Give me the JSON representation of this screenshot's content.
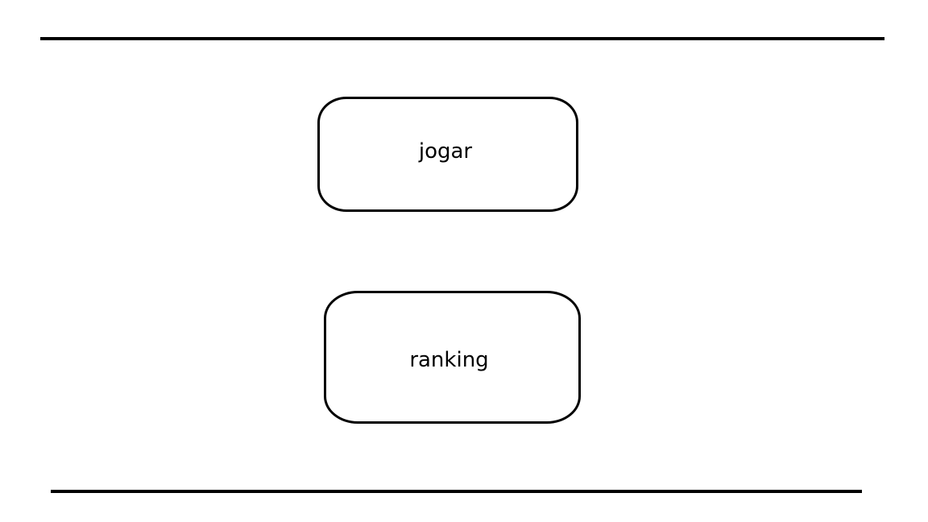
{
  "menu": {
    "play_label": "jogar",
    "ranking_label": "ranking"
  },
  "colors": {
    "background": "#ffffff",
    "stroke": "#000000"
  }
}
